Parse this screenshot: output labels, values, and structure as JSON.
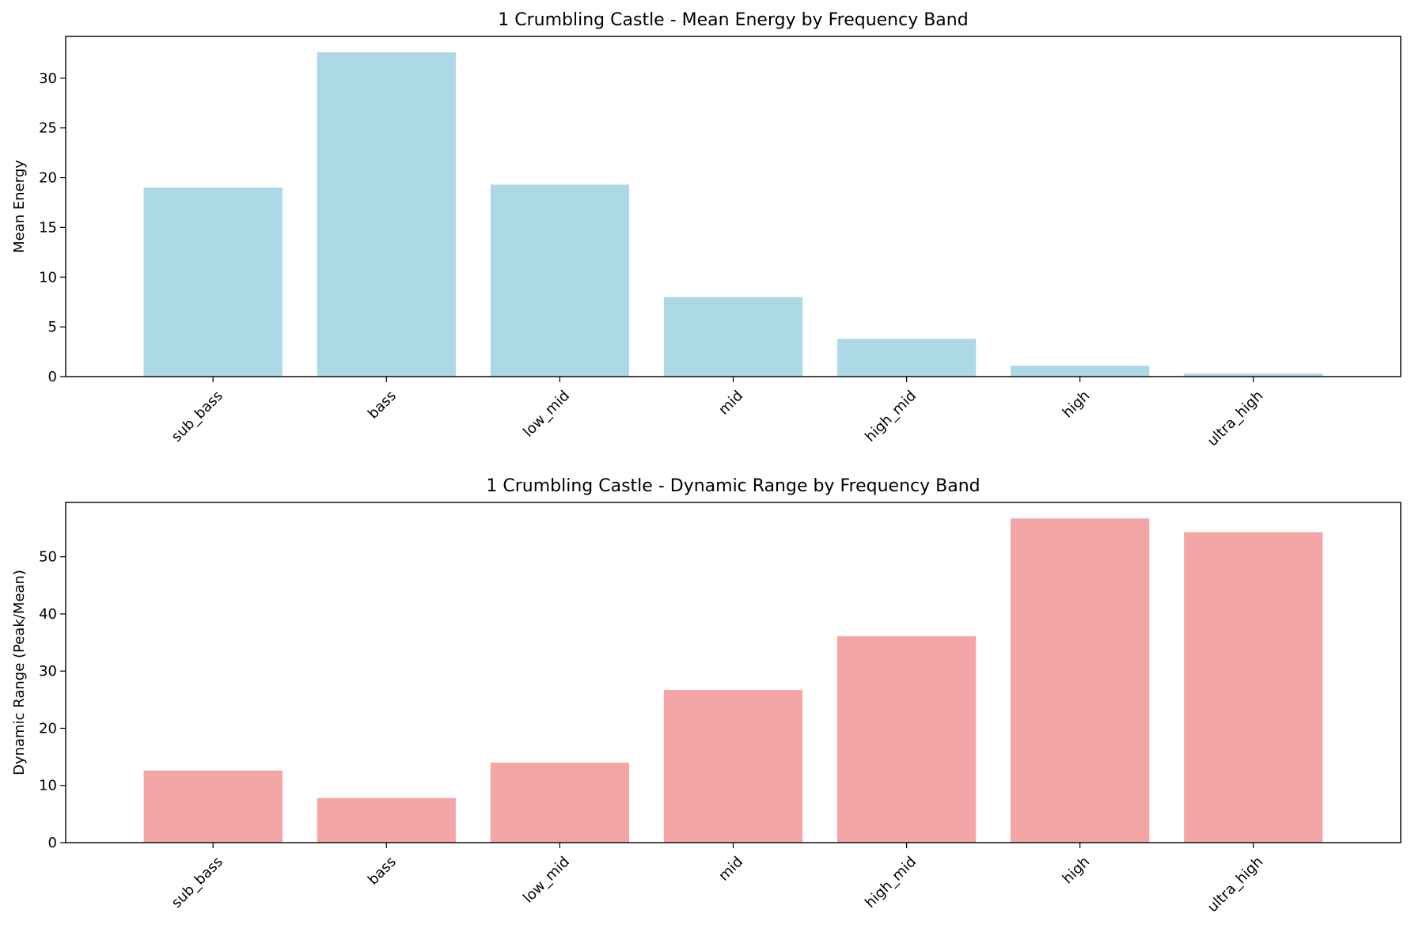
{
  "chart_data": [
    {
      "type": "bar",
      "title": "1 Crumbling Castle - Mean Energy by Frequency Band",
      "xlabel": "",
      "ylabel": "Mean Energy",
      "categories": [
        "sub_bass",
        "bass",
        "low_mid",
        "mid",
        "high_mid",
        "high",
        "ultra_high"
      ],
      "values": [
        19.0,
        32.6,
        19.3,
        8.0,
        3.8,
        1.1,
        0.3
      ],
      "ylim": [
        0,
        34.2
      ],
      "yticks": [
        0,
        5,
        10,
        15,
        20,
        25,
        30
      ],
      "color": "#add8e6",
      "grid": false,
      "legend": "none"
    },
    {
      "type": "bar",
      "title": "1 Crumbling Castle - Dynamic Range by Frequency Band",
      "xlabel": "",
      "ylabel": "Dynamic Range (Peak/Mean)",
      "categories": [
        "sub_bass",
        "bass",
        "low_mid",
        "mid",
        "high_mid",
        "high",
        "ultra_high"
      ],
      "values": [
        12.6,
        7.8,
        14.0,
        26.7,
        36.1,
        56.7,
        54.3
      ],
      "ylim": [
        0,
        59.5
      ],
      "yticks": [
        0,
        10,
        20,
        30,
        40,
        50
      ],
      "color": "#f4a6a6",
      "grid": false,
      "legend": "none"
    }
  ]
}
